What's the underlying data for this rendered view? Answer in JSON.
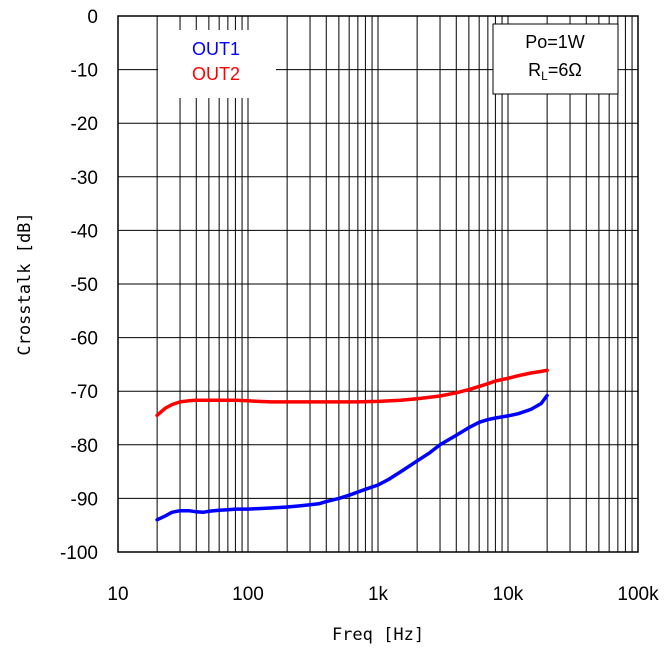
{
  "chart_data": {
    "type": "line",
    "x_scale": "log",
    "xlim": [
      10,
      100000
    ],
    "ylim": [
      -100,
      0
    ],
    "xlabel": "Freq [Hz]",
    "ylabel": "Crosstalk [dB]",
    "x_ticks": [
      {
        "value": 10,
        "label": "10"
      },
      {
        "value": 100,
        "label": "100"
      },
      {
        "value": 1000,
        "label": "1k"
      },
      {
        "value": 10000,
        "label": "10k"
      },
      {
        "value": 100000,
        "label": "100k"
      }
    ],
    "y_ticks": [
      0,
      -10,
      -20,
      -30,
      -40,
      -50,
      -60,
      -70,
      -80,
      -90,
      -100
    ],
    "y_tick_labels": [
      "0",
      "-10",
      "-20",
      "-30",
      "-40",
      "-50",
      "-60",
      "-70",
      "-80",
      "-90",
      "-100"
    ],
    "grid": true,
    "legend_position": "top-left",
    "annotation": {
      "line1": "Po=1W",
      "line2_main": "R",
      "line2_sub": "L",
      "line2_rest": "=6Ω"
    },
    "series": [
      {
        "name": "OUT1",
        "color": "#0000ff",
        "x": [
          20,
          23,
          26,
          30,
          35,
          40,
          45,
          50,
          60,
          70,
          80,
          100,
          120,
          150,
          200,
          250,
          300,
          350,
          400,
          500,
          600,
          700,
          800,
          1000,
          1200,
          1500,
          2000,
          2500,
          3000,
          4000,
          5000,
          6000,
          7000,
          8000,
          10000,
          12000,
          15000,
          18000,
          20000
        ],
        "y": [
          -94,
          -93.3,
          -92.6,
          -92.3,
          -92.3,
          -92.5,
          -92.6,
          -92.4,
          -92.2,
          -92.1,
          -92.0,
          -92.0,
          -91.9,
          -91.8,
          -91.6,
          -91.4,
          -91.2,
          -91.0,
          -90.6,
          -90.0,
          -89.4,
          -88.8,
          -88.3,
          -87.5,
          -86.5,
          -85.0,
          -83.0,
          -81.5,
          -80.0,
          -78.2,
          -76.8,
          -75.8,
          -75.3,
          -75.0,
          -74.6,
          -74.2,
          -73.4,
          -72.3,
          -70.8
        ]
      },
      {
        "name": "OUT2",
        "color": "#ff0000",
        "x": [
          20,
          23,
          26,
          30,
          35,
          40,
          50,
          60,
          80,
          100,
          120,
          150,
          200,
          300,
          500,
          700,
          1000,
          1500,
          2000,
          3000,
          4000,
          5000,
          6000,
          7000,
          8000,
          10000,
          12000,
          15000,
          18000,
          20000
        ],
        "y": [
          -74.5,
          -73.2,
          -72.5,
          -72.0,
          -71.8,
          -71.7,
          -71.7,
          -71.7,
          -71.7,
          -71.8,
          -71.9,
          -72.0,
          -72.0,
          -72.0,
          -72.0,
          -72.0,
          -71.9,
          -71.7,
          -71.4,
          -70.9,
          -70.3,
          -69.7,
          -69.1,
          -68.6,
          -68.1,
          -67.6,
          -67.1,
          -66.6,
          -66.3,
          -66.1
        ]
      }
    ]
  }
}
